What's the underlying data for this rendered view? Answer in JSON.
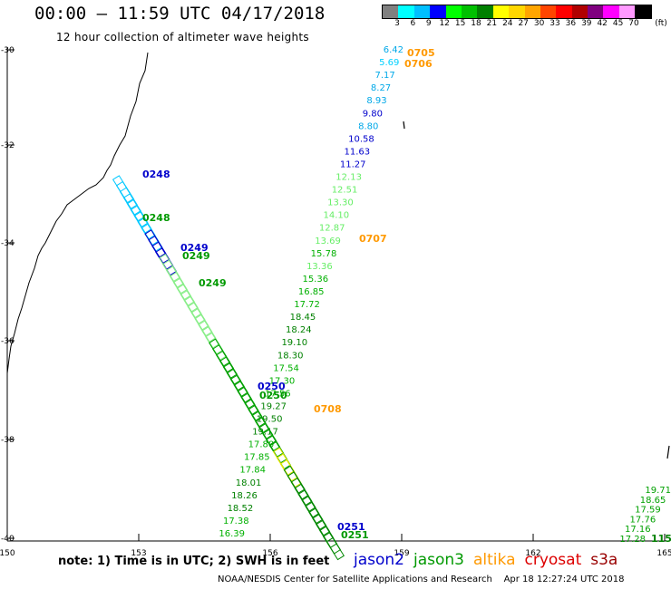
{
  "header": {
    "title": "00:00 – 11:59 UTC 04/17/2018",
    "subtitle": "12 hour collection of altimeter wave heights"
  },
  "colorbar": {
    "unit": "(ft)",
    "labels": [
      "3",
      "6",
      "9",
      "12",
      "15",
      "18",
      "21",
      "24",
      "27",
      "30",
      "33",
      "36",
      "39",
      "42",
      "45",
      "70"
    ],
    "colors": [
      "#808080",
      "#00ffff",
      "#00bfff",
      "#0000ff",
      "#00ff00",
      "#00c000",
      "#008000",
      "#ffff00",
      "#ffd700",
      "#ffa500",
      "#ff4500",
      "#ff0000",
      "#b00000",
      "#800080",
      "#ff00ff",
      "#ff99ff",
      "#000000"
    ]
  },
  "map": {
    "lon_ticks": [
      "150",
      "153",
      "156",
      "159",
      "162",
      "165"
    ],
    "lat_ticks": [
      "-30",
      "-32",
      "-34",
      "-36",
      "-38",
      "-40"
    ],
    "colors": {
      "jason2": "#0000cc",
      "jason3": "#009900",
      "altika": "#ff9900",
      "cryosat": "#dd0000",
      "s3a": "#990000"
    },
    "track_labels": [
      {
        "text": "0705",
        "mission": "altika"
      },
      {
        "text": "0706",
        "mission": "altika"
      },
      {
        "text": "0707",
        "mission": "altika"
      },
      {
        "text": "0708",
        "mission": "altika"
      },
      {
        "text": "0248",
        "mission": "jason2"
      },
      {
        "text": "0248",
        "mission": "jason3"
      },
      {
        "text": "0249",
        "mission": "jason2"
      },
      {
        "text": "0249",
        "mission": "jason3"
      },
      {
        "text": "0249",
        "mission": "jason3"
      },
      {
        "text": "0250",
        "mission": "jason2"
      },
      {
        "text": "0250",
        "mission": "jason3"
      },
      {
        "text": "0251",
        "mission": "jason2"
      },
      {
        "text": "0251",
        "mission": "jason3"
      }
    ],
    "altika_values": [
      "6.42",
      "5.69",
      "7.17",
      "8.27",
      "8.93",
      "9.80",
      "8.80",
      "10.58",
      "11.63",
      "11.27",
      "12.13",
      "12.51",
      "13.30",
      "14.10",
      "12.87",
      "13.69",
      "15.78",
      "13.36",
      "15.36",
      "16.85",
      "17.72",
      "18.45",
      "18.24",
      "19.10",
      "18.30",
      "17.54",
      "17.30",
      "17.56",
      "19.27",
      "19.50",
      "19.17",
      "17.80",
      "17.85",
      "17.84",
      "18.01",
      "18.26",
      "18.52",
      "17.38",
      "16.39"
    ],
    "east_values": [
      "19.71",
      "18.65",
      "17.59",
      "17.76",
      "17.16",
      "17.28"
    ],
    "east_track_label": "115"
  },
  "footer": {
    "note": "note: 1) Time is in UTC; 2) SWH is in feet",
    "legend": [
      "jason2",
      "jason3",
      "altika",
      "cryosat",
      "s3a"
    ],
    "credit": "NOAA/NESDIS Center for Satellite Applications and Research    Apr 18 12:27:24 UTC 2018"
  }
}
